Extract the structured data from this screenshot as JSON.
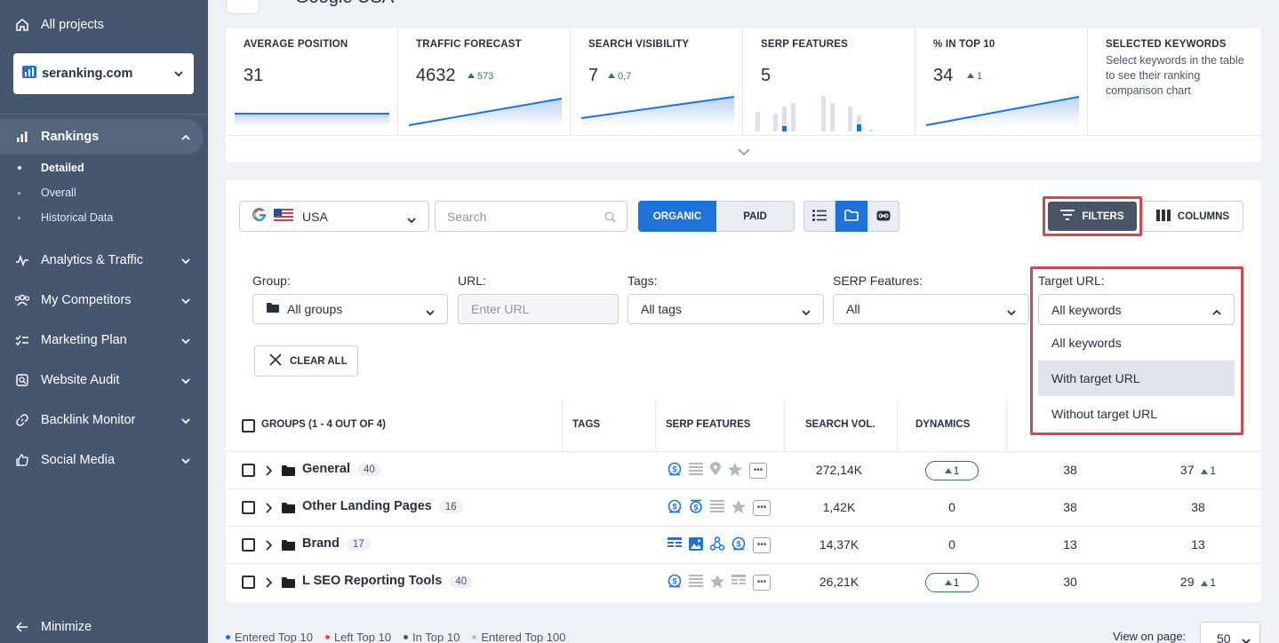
{
  "sidebar": {
    "all_projects": "All projects",
    "project": "seranking.com",
    "nav": [
      {
        "label": "Rankings"
      },
      {
        "label": "Analytics & Traffic"
      },
      {
        "label": "My Competitors"
      },
      {
        "label": "Marketing Plan"
      },
      {
        "label": "Website Audit"
      },
      {
        "label": "Backlink Monitor"
      },
      {
        "label": "Social Media"
      }
    ],
    "rankings_sub": [
      "Detailed",
      "Overall",
      "Historical Data"
    ],
    "minimize": "Minimize"
  },
  "header": {
    "engine": "Google USA"
  },
  "stats": [
    {
      "title": "AVERAGE POSITION",
      "value": "31",
      "delta": ""
    },
    {
      "title": "TRAFFIC FORECAST",
      "value": "4632",
      "delta": "573"
    },
    {
      "title": "SEARCH VISIBILITY",
      "value": "7",
      "delta": "0,7"
    },
    {
      "title": "SERP FEATURES",
      "value": "5",
      "delta": ""
    },
    {
      "title": "% IN TOP 10",
      "value": "34",
      "delta": "1"
    },
    {
      "title": "SELECTED KEYWORDS",
      "desc": "Select keywords in the table to see their ranking comparison chart"
    }
  ],
  "toolbar": {
    "location": "USA",
    "search_placeholder": "Search",
    "organic": "ORGANIC",
    "paid": "PAID",
    "filters": "FILTERS",
    "columns": "COLUMNS"
  },
  "filters": {
    "group_label": "Group:",
    "group_value": "All groups",
    "url_label": "URL:",
    "url_placeholder": "Enter URL",
    "tags_label": "Tags:",
    "tags_value": "All tags",
    "serp_label": "SERP Features:",
    "serp_value": "All",
    "target_label": "Target URL:",
    "target_value": "All keywords",
    "target_options": [
      "All keywords",
      "With target URL",
      "Without target URL"
    ],
    "clear_all": "CLEAR ALL"
  },
  "table": {
    "headers": {
      "groups": "GROUPS (1 - 4 OUT OF 4)",
      "tags": "TAGS",
      "serp": "SERP FEATURES",
      "search_vol": "SEARCH VOL.",
      "dynamics": "DYNAMICS"
    },
    "rows": [
      {
        "name": "General",
        "count": "40",
        "search_vol": "272,14K",
        "dynamics": "1",
        "dyn_pill": true,
        "col1": "38",
        "col2": "37",
        "col2_delta": "1"
      },
      {
        "name": "Other Landing Pages",
        "count": "16",
        "search_vol": "1,42K",
        "dynamics": "0",
        "dyn_pill": false,
        "col1": "38",
        "col2": "38",
        "col2_delta": ""
      },
      {
        "name": "Brand",
        "count": "17",
        "search_vol": "14,37K",
        "dynamics": "0",
        "dyn_pill": false,
        "col1": "13",
        "col2": "13",
        "col2_delta": ""
      },
      {
        "name": "L SEO Reporting Tools",
        "count": "40",
        "search_vol": "26,21K",
        "dynamics": "1",
        "dyn_pill": true,
        "col1": "30",
        "col2": "29",
        "col2_delta": "1"
      }
    ]
  },
  "footer": {
    "legend": [
      {
        "label": "Entered Top 10",
        "color": "#1f72d6"
      },
      {
        "label": "Left Top 10",
        "color": "#d9534f"
      },
      {
        "label": "In Top 10",
        "color": "#4a5568"
      },
      {
        "label": "Entered Top 100",
        "color": "#b8c0cc"
      }
    ],
    "view_label": "View on page:",
    "view_value": "50"
  }
}
